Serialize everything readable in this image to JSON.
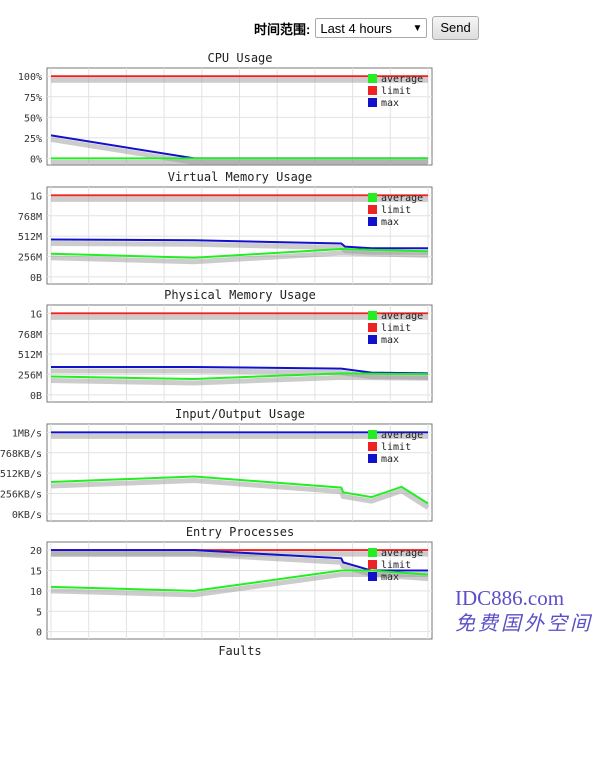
{
  "header": {
    "time_range_label": "时间范围:",
    "time_range_value": "Last 4 hours",
    "send_label": "Send"
  },
  "watermark": {
    "line1": "IDC886.com",
    "line2": "免费国外空间"
  },
  "colors": {
    "average": "#22ee22",
    "limit": "#ee2222",
    "max": "#1111cc"
  },
  "chart_data": [
    {
      "type": "line",
      "title": "CPU Usage",
      "yticks": [
        "0%",
        "25%",
        "50%",
        "75%",
        "100%"
      ],
      "yvals": [
        0,
        25,
        50,
        75,
        100
      ],
      "ylim": [
        -8,
        110
      ],
      "legend": [
        "average",
        "limit",
        "max"
      ],
      "legend_position": "top-right",
      "grid": true,
      "series": [
        {
          "name": "limit",
          "x": [
            0,
            1
          ],
          "y": [
            100,
            100
          ]
        },
        {
          "name": "max",
          "x": [
            0,
            0.38,
            1
          ],
          "y": [
            28,
            0,
            0
          ]
        },
        {
          "name": "average",
          "x": [
            0,
            1
          ],
          "y": [
            0,
            0
          ]
        }
      ]
    },
    {
      "type": "line",
      "title": "Virtual Memory Usage",
      "yticks": [
        "0B",
        "256M",
        "512M",
        "768M",
        "1G"
      ],
      "yvals": [
        0,
        256,
        512,
        768,
        1024
      ],
      "ylim": [
        -90,
        1130
      ],
      "legend": [
        "average",
        "limit",
        "max"
      ],
      "legend_position": "top-right",
      "grid": true,
      "series": [
        {
          "name": "limit",
          "x": [
            0,
            1
          ],
          "y": [
            1024,
            1024
          ]
        },
        {
          "name": "max",
          "x": [
            0,
            0.38,
            0.77,
            0.78,
            0.85,
            1
          ],
          "y": [
            470,
            460,
            420,
            380,
            360,
            360
          ]
        },
        {
          "name": "average",
          "x": [
            0,
            0.38,
            0.77,
            1
          ],
          "y": [
            290,
            240,
            350,
            320
          ]
        }
      ]
    },
    {
      "type": "line",
      "title": "Physical Memory Usage",
      "yticks": [
        "0B",
        "256M",
        "512M",
        "768M",
        "1G"
      ],
      "yvals": [
        0,
        256,
        512,
        768,
        1024
      ],
      "ylim": [
        -90,
        1130
      ],
      "legend": [
        "average",
        "limit",
        "max"
      ],
      "legend_position": "top-right",
      "grid": true,
      "series": [
        {
          "name": "limit",
          "x": [
            0,
            1
          ],
          "y": [
            1024,
            1024
          ]
        },
        {
          "name": "max",
          "x": [
            0,
            0.38,
            0.77,
            0.85,
            1
          ],
          "y": [
            350,
            350,
            330,
            280,
            270
          ]
        },
        {
          "name": "average",
          "x": [
            0,
            0.38,
            0.77,
            1
          ],
          "y": [
            230,
            200,
            270,
            260
          ]
        }
      ]
    },
    {
      "type": "line",
      "title": "Input/Output Usage",
      "yticks": [
        "0KB/s",
        "256KB/s",
        "512KB/s",
        "768KB/s",
        "1MB/s"
      ],
      "yvals": [
        0,
        256,
        512,
        768,
        1024
      ],
      "ylim": [
        -90,
        1130
      ],
      "legend": [
        "average",
        "limit",
        "max"
      ],
      "legend_position": "top-right",
      "grid": true,
      "series": [
        {
          "name": "max",
          "x": [
            0,
            1
          ],
          "y": [
            1024,
            1024
          ]
        },
        {
          "name": "average",
          "x": [
            0,
            0.38,
            0.77,
            0.775,
            0.85,
            0.93,
            1
          ],
          "y": [
            400,
            470,
            330,
            270,
            210,
            340,
            130
          ]
        }
      ]
    },
    {
      "type": "line",
      "title": "Entry Processes",
      "yticks": [
        "0",
        "5",
        "10",
        "15",
        "20"
      ],
      "yvals": [
        0,
        5,
        10,
        15,
        20
      ],
      "ylim": [
        -1.8,
        22
      ],
      "legend": [
        "average",
        "limit",
        "max"
      ],
      "legend_position": "top-right",
      "grid": true,
      "series": [
        {
          "name": "limit",
          "x": [
            0,
            1
          ],
          "y": [
            20,
            20
          ]
        },
        {
          "name": "max",
          "x": [
            0,
            0.38,
            0.77,
            0.775,
            0.85,
            1
          ],
          "y": [
            20,
            20,
            18,
            17,
            15,
            15
          ]
        },
        {
          "name": "average",
          "x": [
            0,
            0.38,
            0.77,
            0.85,
            1
          ],
          "y": [
            11,
            10,
            15,
            15,
            14
          ]
        }
      ]
    },
    {
      "type": "line",
      "title": "Faults"
    }
  ]
}
